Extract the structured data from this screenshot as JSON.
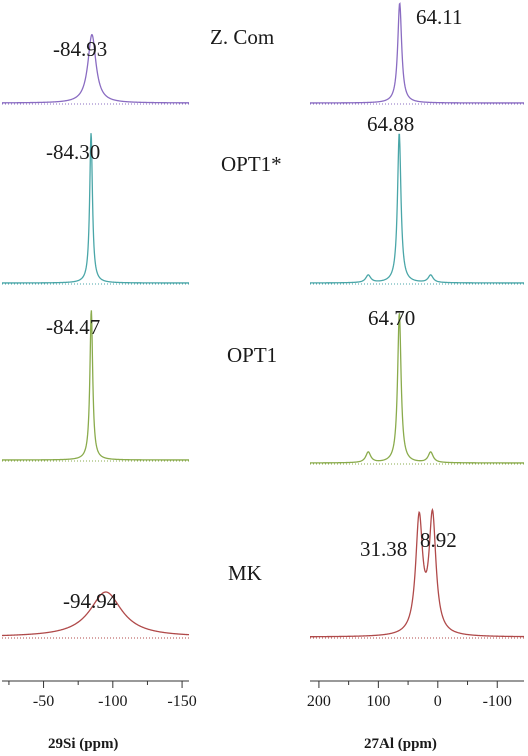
{
  "chart_data": [
    {
      "type": "line",
      "xlabel": "29Si (ppm)",
      "xlim": [
        -20,
        -155
      ],
      "x_ticks": [
        -50,
        -100,
        -150
      ],
      "series": [
        {
          "name": "Z. Com",
          "peaks": [
            {
              "ppm": -84.93,
              "label": "-84.93",
              "height": 0.38,
              "width": 3.5
            }
          ],
          "color": "#8a6cc2"
        },
        {
          "name": "OPT1*",
          "peaks": [
            {
              "ppm": -84.3,
              "label": "-84.30",
              "height": 1.0,
              "width": 1.2
            }
          ],
          "color": "#4aa6a8"
        },
        {
          "name": "OPT1",
          "peaks": [
            {
              "ppm": -84.47,
              "label": "-84.47",
              "height": 1.0,
              "width": 1.2
            }
          ],
          "color": "#8aab4c"
        },
        {
          "name": "MK",
          "peaks": [
            {
              "ppm": -94.94,
              "label": "-94.94",
              "height": 0.3,
              "width": 14
            }
          ],
          "color": "#b04a4a"
        }
      ]
    },
    {
      "type": "line",
      "xlabel": "27Al (ppm)",
      "xlim": [
        215,
        -145
      ],
      "x_ticks": [
        200,
        100,
        0,
        -100
      ],
      "series": [
        {
          "name": "Z. Com",
          "peaks": [
            {
              "ppm": 64.11,
              "label": "64.11",
              "height": 1.0,
              "width": 4
            }
          ],
          "color": "#8a6cc2"
        },
        {
          "name": "OPT1*",
          "peaks": [
            {
              "ppm": 64.88,
              "label": "64.88",
              "height": 1.0,
              "width": 3.5
            },
            {
              "ppm": 117,
              "label": "",
              "height": 0.05,
              "width": 5
            },
            {
              "ppm": 12,
              "label": "",
              "height": 0.05,
              "width": 5
            }
          ],
          "color": "#4aa6a8"
        },
        {
          "name": "OPT1",
          "peaks": [
            {
              "ppm": 64.7,
              "label": "64.70",
              "height": 1.0,
              "width": 3.5
            },
            {
              "ppm": 117,
              "label": "",
              "height": 0.07,
              "width": 5
            },
            {
              "ppm": 12,
              "label": "",
              "height": 0.07,
              "width": 5
            }
          ],
          "color": "#8aab4c"
        },
        {
          "name": "MK",
          "peaks": [
            {
              "ppm": 31.38,
              "label": "31.38",
              "height": 0.88,
              "width": 7
            },
            {
              "ppm": 8.92,
              "label": "8.92",
              "height": 0.9,
              "width": 7
            }
          ],
          "color": "#b04a4a"
        }
      ]
    }
  ]
}
